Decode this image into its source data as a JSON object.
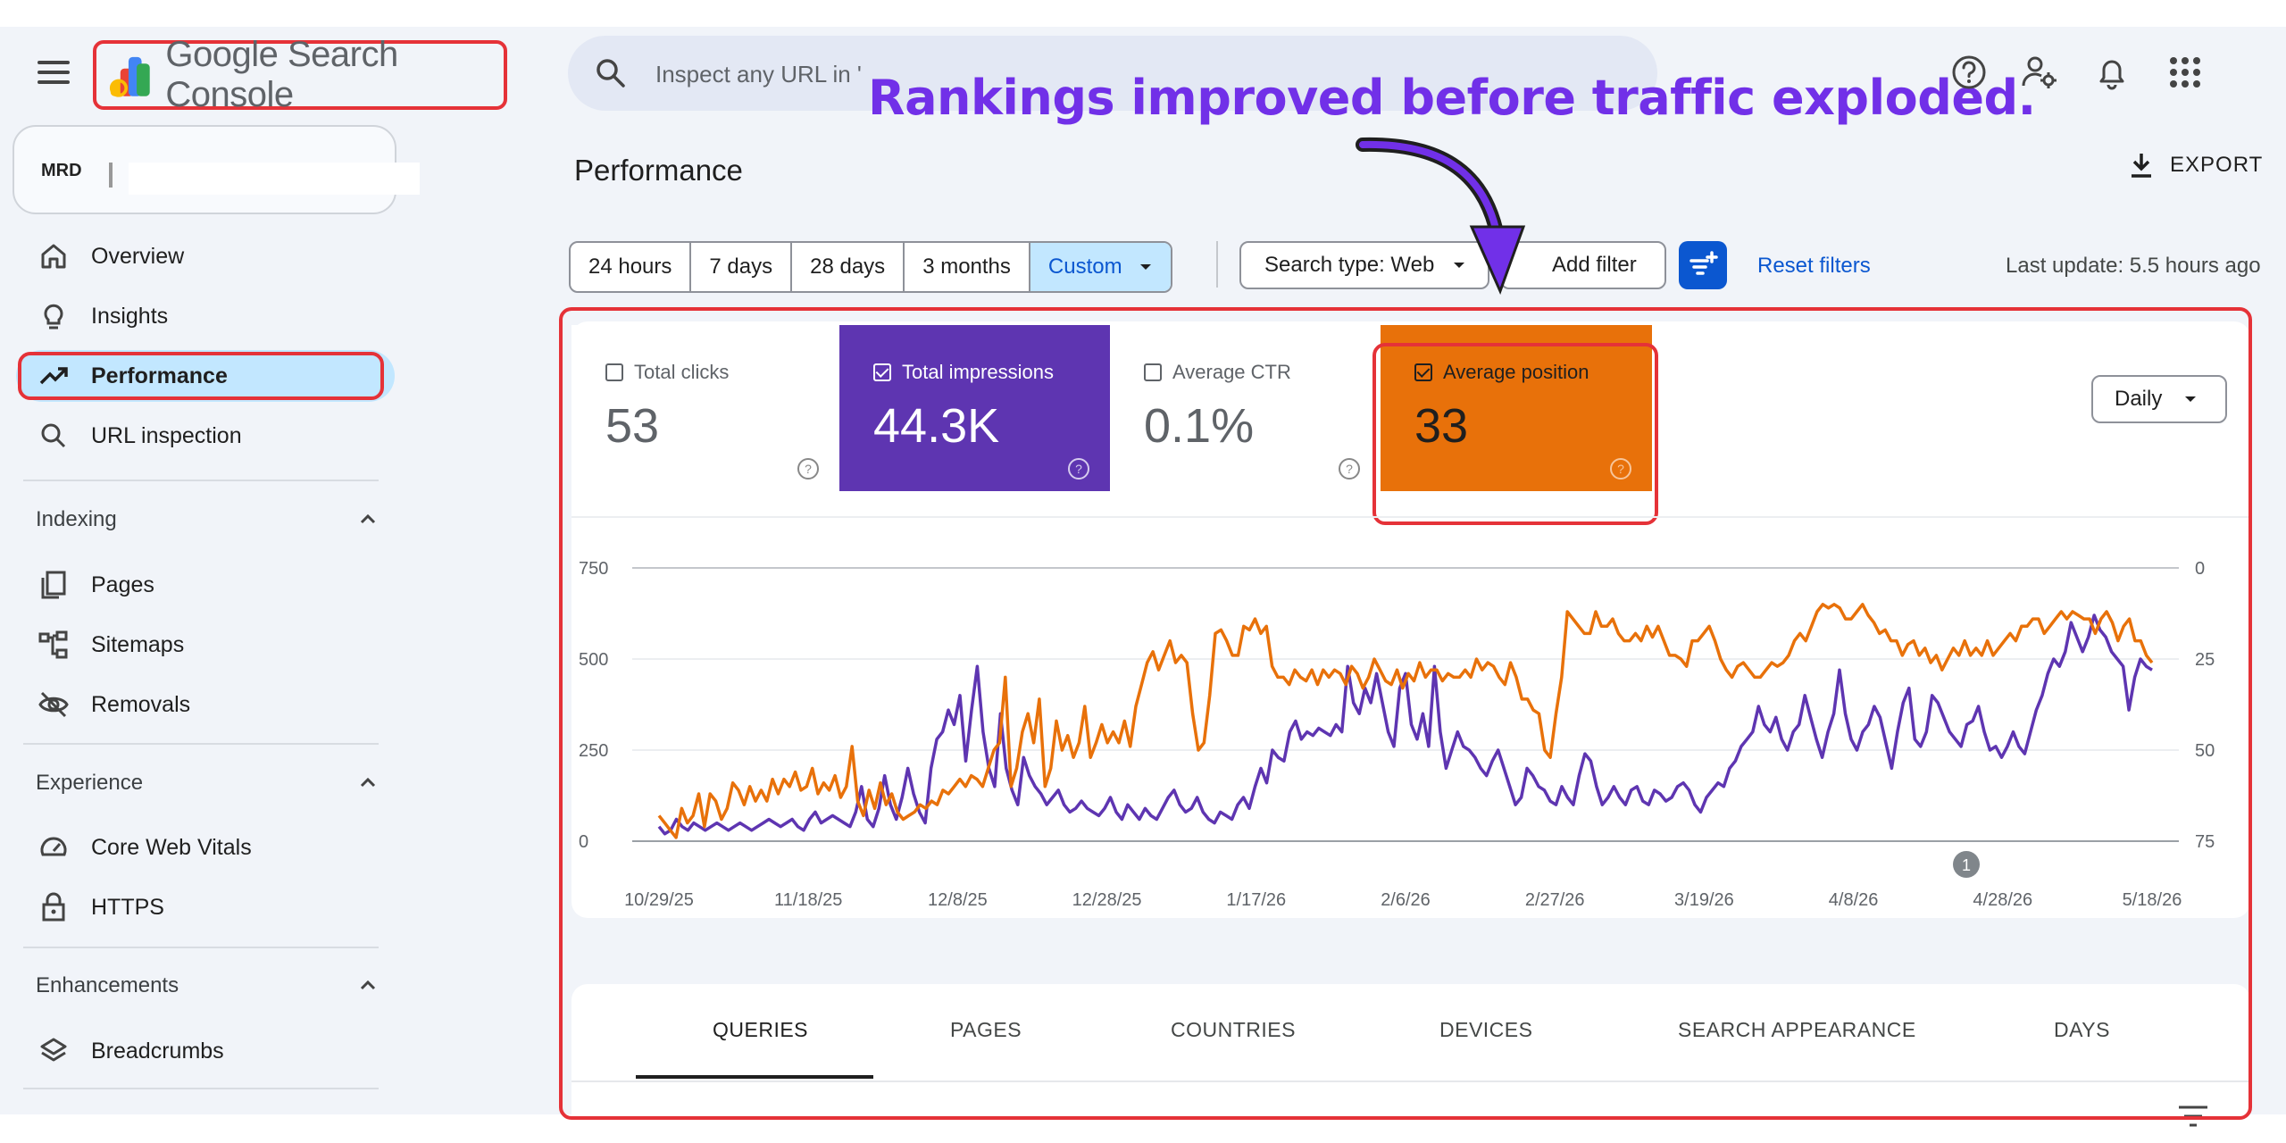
{
  "header": {
    "app_name": "Google Search Console",
    "search_placeholder": "Inspect any URL in '"
  },
  "annotation": "Rankings improved before traffic exploded.",
  "property": {
    "logo_text": "MRD"
  },
  "sidebar": {
    "items": [
      {
        "label": "Overview",
        "icon": "home-icon"
      },
      {
        "label": "Insights",
        "icon": "lightbulb-icon"
      },
      {
        "label": "Performance",
        "icon": "trending-up-icon"
      },
      {
        "label": "URL inspection",
        "icon": "search-icon"
      }
    ],
    "sections": [
      {
        "title": "Indexing",
        "items": [
          {
            "label": "Pages",
            "icon": "pages-icon"
          },
          {
            "label": "Sitemaps",
            "icon": "sitemap-icon"
          },
          {
            "label": "Removals",
            "icon": "eye-off-icon"
          }
        ]
      },
      {
        "title": "Experience",
        "items": [
          {
            "label": "Core Web Vitals",
            "icon": "gauge-icon"
          },
          {
            "label": "HTTPS",
            "icon": "lock-icon"
          }
        ]
      },
      {
        "title": "Enhancements",
        "items": [
          {
            "label": "Breadcrumbs",
            "icon": "layers-icon"
          }
        ]
      }
    ]
  },
  "main": {
    "title": "Performance",
    "export_label": "EXPORT",
    "date_ranges": [
      "24 hours",
      "7 days",
      "28 days",
      "3 months",
      "Custom"
    ],
    "search_type": "Search type: Web",
    "add_filter": "Add filter",
    "reset_filters": "Reset filters",
    "last_update": "Last update: 5.5 hours ago",
    "granularity": "Daily",
    "metrics": [
      {
        "label": "Total clicks",
        "value": "53",
        "checked": false
      },
      {
        "label": "Total impressions",
        "value": "44.3K",
        "checked": true,
        "color": "#5e35b1"
      },
      {
        "label": "Average CTR",
        "value": "0.1%",
        "checked": false
      },
      {
        "label": "Average position",
        "value": "33",
        "checked": true,
        "color": "#e8710a"
      }
    ],
    "tabs": [
      "QUERIES",
      "PAGES",
      "COUNTRIES",
      "DEVICES",
      "SEARCH APPEARANCE",
      "DAYS"
    ],
    "event_marker": "1"
  },
  "colors": {
    "impressions": "#5e35b1",
    "position": "#e8710a",
    "accent": "#0b57d0",
    "highlight": "#e53238"
  },
  "chart_data": {
    "type": "line",
    "x_ticks": [
      "10/29/25",
      "11/18/25",
      "12/8/25",
      "12/28/25",
      "1/17/26",
      "2/6/26",
      "2/27/26",
      "3/19/26",
      "4/8/26",
      "4/28/26",
      "5/18/26"
    ],
    "y_left_ticks": [
      "0",
      "250",
      "500",
      "750"
    ],
    "y_left_range": [
      0,
      750
    ],
    "y_right_ticks": [
      "0",
      "25",
      "50",
      "75"
    ],
    "y_right_range": [
      0,
      75
    ],
    "y_right_inverted": true,
    "grid": true,
    "series": [
      {
        "name": "Total impressions",
        "axis": "left",
        "color": "#5e35b1",
        "values": [
          40,
          20,
          30,
          60,
          40,
          30,
          50,
          40,
          30,
          40,
          50,
          40,
          30,
          40,
          50,
          40,
          30,
          40,
          50,
          60,
          50,
          40,
          50,
          60,
          40,
          30,
          60,
          80,
          50,
          60,
          70,
          60,
          50,
          40,
          80,
          150,
          60,
          40,
          90,
          180,
          100,
          60,
          120,
          200,
          130,
          80,
          50,
          200,
          280,
          300,
          360,
          320,
          400,
          220,
          360,
          480,
          300,
          200,
          150,
          350,
          200,
          140,
          100,
          230,
          180,
          150,
          130,
          100,
          120,
          140,
          100,
          80,
          90,
          110,
          90,
          80,
          70,
          90,
          120,
          80,
          60,
          100,
          80,
          60,
          90,
          70,
          60,
          90,
          120,
          140,
          100,
          80,
          90,
          120,
          80,
          60,
          50,
          80,
          70,
          60,
          100,
          120,
          90,
          150,
          200,
          160,
          250,
          230,
          220,
          300,
          330,
          280,
          300,
          290,
          310,
          300,
          290,
          320,
          300,
          480,
          380,
          350,
          420,
          380,
          460,
          380,
          300,
          260,
          420,
          460,
          320,
          280,
          350,
          260,
          480,
          300,
          200,
          250,
          300,
          260,
          250,
          230,
          200,
          180,
          220,
          250,
          200,
          150,
          100,
          120,
          200,
          180,
          150,
          140,
          110,
          100,
          150,
          120,
          100,
          180,
          240,
          220,
          150,
          100,
          120,
          150,
          120,
          100,
          140,
          150,
          110,
          100,
          140,
          130,
          110,
          120,
          150,
          160,
          140,
          100,
          80,
          120,
          140,
          160,
          150,
          200,
          220,
          260,
          280,
          300,
          370,
          320,
          300,
          340,
          280,
          250,
          300,
          320,
          400,
          340,
          280,
          230,
          300,
          350,
          470,
          350,
          280,
          250,
          300,
          320,
          370,
          340,
          270,
          200,
          300,
          380,
          420,
          280,
          260,
          300,
          400,
          380,
          340,
          300,
          280,
          260,
          320,
          330,
          370,
          300,
          250,
          260,
          230,
          260,
          300,
          260,
          240,
          300,
          360,
          400,
          460,
          500,
          480,
          520,
          600,
          560,
          520,
          560,
          620,
          580,
          560,
          520,
          500,
          480,
          360,
          450,
          500,
          480,
          470
        ]
      },
      {
        "name": "Average position",
        "axis": "right",
        "color": "#e8710a",
        "values": [
          68,
          70,
          72,
          74,
          66,
          70,
          68,
          62,
          71,
          62,
          64,
          69,
          66,
          59,
          61,
          65,
          60,
          64,
          61,
          64,
          58,
          62,
          58,
          60,
          56,
          61,
          60,
          55,
          62,
          59,
          61,
          57,
          63,
          60,
          49,
          64,
          68,
          61,
          66,
          59,
          65,
          62,
          67,
          69,
          68,
          67,
          65,
          66,
          64,
          65,
          61,
          62,
          60,
          58,
          60,
          57,
          58,
          60,
          55,
          50,
          48,
          30,
          60,
          55,
          45,
          40,
          48,
          36,
          60,
          55,
          42,
          50,
          46,
          52,
          48,
          38,
          52,
          48,
          43,
          48,
          45,
          48,
          42,
          49,
          38,
          32,
          26,
          23,
          28,
          24,
          20,
          26,
          24,
          26,
          40,
          50,
          48,
          35,
          18,
          17,
          20,
          24,
          24,
          16,
          17,
          14,
          18,
          16,
          27,
          30,
          30,
          32,
          28,
          30,
          31,
          28,
          32,
          28,
          30,
          28,
          29,
          32,
          27,
          29,
          33,
          30,
          25,
          28,
          31,
          32,
          28,
          33,
          29,
          31,
          26,
          30,
          28,
          28,
          31,
          29,
          30,
          30,
          28,
          30,
          25,
          28,
          26,
          27,
          30,
          32,
          26,
          30,
          36,
          36,
          39,
          40,
          50,
          52,
          40,
          30,
          12,
          14,
          16,
          18,
          18,
          12,
          16,
          16,
          14,
          18,
          20,
          20,
          18,
          20,
          16,
          19,
          16,
          20,
          24,
          24,
          25,
          27,
          20,
          20,
          18,
          16,
          20,
          25,
          28,
          30,
          27,
          26,
          28,
          30,
          30,
          28,
          26,
          27,
          26,
          24,
          20,
          18,
          20,
          16,
          12,
          10,
          11,
          10,
          11,
          14,
          14,
          12,
          10,
          13,
          15,
          18,
          17,
          20,
          20,
          24,
          21,
          20,
          24,
          22,
          26,
          24,
          28,
          25,
          22,
          24,
          20,
          24,
          22,
          24,
          20,
          24,
          22,
          20,
          18,
          20,
          16,
          16,
          14,
          14,
          18,
          16,
          14,
          12,
          14,
          12,
          13,
          14,
          14,
          18,
          14,
          12,
          15,
          20,
          16,
          14,
          20,
          20,
          24,
          26
        ]
      }
    ]
  }
}
